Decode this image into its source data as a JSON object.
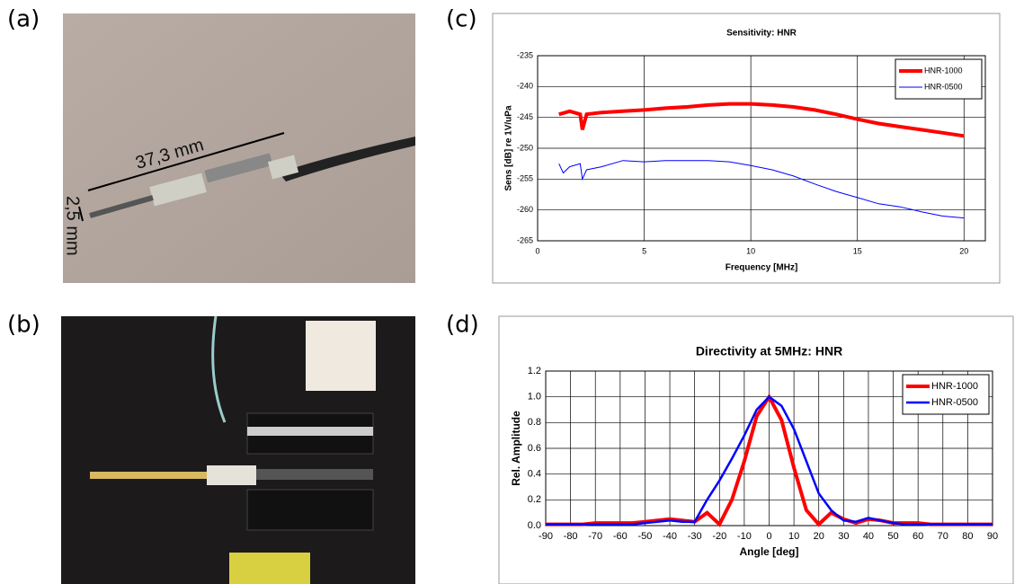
{
  "panels": {
    "labels": [
      "(a)",
      "(b)",
      "(c)",
      "(d)"
    ],
    "annotations": [
      "37,3 mm",
      "2,5 mm"
    ]
  },
  "chart_data": [
    {
      "type": "line",
      "title": "Sensitivity: HNR",
      "x_label": "Frequency [MHz]",
      "y_label": "Sens [dB] re 1V/uPa",
      "x": [
        1,
        1.2,
        1.5,
        2,
        2.1,
        2.3,
        3,
        4,
        5,
        6,
        7,
        8,
        9,
        10,
        11,
        12,
        13,
        14,
        15,
        16,
        17,
        18,
        19,
        20
      ],
      "series": [
        {
          "name": "HNR-1000",
          "color": "#ff0000",
          "values": [
            -244.5,
            -244.3,
            -244,
            -244.5,
            -247,
            -244.5,
            -244.2,
            -244,
            -243.8,
            -243.5,
            -243.3,
            -243,
            -242.8,
            -242.8,
            -243,
            -243.3,
            -243.8,
            -244.5,
            -245.3,
            -246,
            -246.5,
            -247,
            -247.5,
            -248
          ]
        },
        {
          "name": "HNR-0500",
          "color": "#0000ff",
          "values": [
            -252.5,
            -254,
            -253,
            -252.5,
            -255,
            -253.5,
            -253,
            -252,
            -252.2,
            -252,
            -252,
            -252,
            -252.2,
            -252.8,
            -253.5,
            -254.5,
            -255.8,
            -257,
            -258,
            -259,
            -259.5,
            -260.3,
            -261,
            -261.3
          ]
        }
      ],
      "xlim": [
        0,
        21
      ],
      "xticks": [
        0,
        5,
        10,
        15,
        20
      ],
      "ylim": [
        -265,
        -235
      ],
      "yticks": [
        -265,
        -260,
        -255,
        -250,
        -245,
        -240,
        -235
      ],
      "grid": true,
      "legend": "upper right"
    },
    {
      "type": "line",
      "title": "Directivity at 5MHz: HNR",
      "x_label": "Angle [deg]",
      "y_label": "Rel. Amplitude",
      "x": [
        -90,
        -85,
        -80,
        -75,
        -70,
        -65,
        -60,
        -55,
        -50,
        -45,
        -40,
        -35,
        -30,
        -25,
        -20,
        -15,
        -10,
        -5,
        0,
        5,
        10,
        15,
        20,
        25,
        30,
        35,
        40,
        45,
        50,
        55,
        60,
        65,
        70,
        75,
        80,
        85,
        90
      ],
      "series": [
        {
          "name": "HNR-1000",
          "color": "#ff0000",
          "values": [
            0.01,
            0.01,
            0.01,
            0.01,
            0.02,
            0.02,
            0.02,
            0.02,
            0.03,
            0.04,
            0.05,
            0.04,
            0.03,
            0.1,
            0.01,
            0.2,
            0.5,
            0.85,
            1.0,
            0.82,
            0.45,
            0.12,
            0.01,
            0.1,
            0.05,
            0.02,
            0.05,
            0.04,
            0.02,
            0.02,
            0.02,
            0.01,
            0.01,
            0.01,
            0.01,
            0.01,
            0.01
          ]
        },
        {
          "name": "HNR-0500",
          "color": "#0000ff",
          "values": [
            0.01,
            0.01,
            0.01,
            0.01,
            0.01,
            0.01,
            0.01,
            0.01,
            0.02,
            0.03,
            0.04,
            0.03,
            0.03,
            0.2,
            0.35,
            0.52,
            0.7,
            0.9,
            1.0,
            0.93,
            0.75,
            0.5,
            0.25,
            0.12,
            0.04,
            0.03,
            0.06,
            0.04,
            0.02,
            0.01,
            0.01,
            0.01,
            0.01,
            0.01,
            0.01,
            0.01,
            0.01
          ]
        }
      ],
      "xlim": [
        -90,
        90
      ],
      "xticks": [
        -90,
        -80,
        -70,
        -60,
        -50,
        -40,
        -30,
        -20,
        -10,
        0,
        10,
        20,
        30,
        40,
        50,
        60,
        70,
        80,
        90
      ],
      "ylim": [
        0,
        1.2
      ],
      "yticks": [
        {
          "value": 0,
          "label": "0.0"
        },
        0.2,
        0.4,
        0.6,
        0.8,
        {
          "value": 1,
          "label": "1.0"
        },
        1.2
      ],
      "grid": true,
      "legend": "upper right"
    }
  ]
}
